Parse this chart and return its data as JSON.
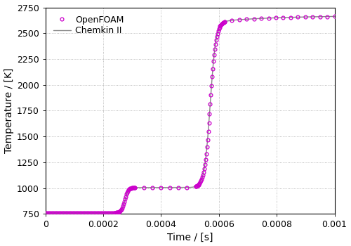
{
  "title": "",
  "xlabel": "Time / [s]",
  "ylabel": "Temperature / [K]",
  "xlim": [
    0,
    0.001
  ],
  "ylim": [
    750,
    2750
  ],
  "yticks": [
    750,
    1000,
    1250,
    1500,
    1750,
    2000,
    2250,
    2500,
    2750
  ],
  "xticks": [
    0,
    0.0002,
    0.0004,
    0.0006,
    0.0008,
    0.001
  ],
  "openfoam_color": "#cc00cc",
  "chemkin_color": "#888888",
  "background_color": "#ffffff",
  "plot_bg_color": "#ffffff",
  "grid_color": "#aaaaaa",
  "legend_labels": [
    "OpenFOAM",
    "Chemkin II"
  ],
  "figsize": [
    5.0,
    3.5
  ],
  "dpi": 100
}
